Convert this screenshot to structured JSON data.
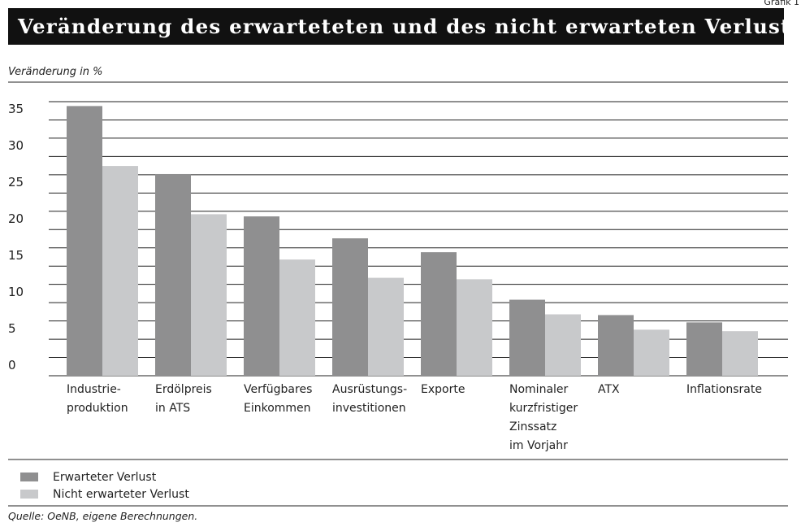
{
  "chart_data": {
    "type": "bar",
    "corner_label": "Grafik 1",
    "title": "Veränderung des erwarteteten und des nicht erwarteten Verlusts",
    "y_label": "Veränderung in %",
    "categories": [
      "Industrie-\nproduktion",
      "Erdölpreis\nin ATS",
      "Verfügbares\nEinkommen",
      "Ausrüstungs-\ninvestitionen",
      "Exporte",
      "Nominaler\nkurzfristiger\nZinssatz\nim Vorjahr",
      "ATX",
      "Inflationsrate"
    ],
    "series": [
      {
        "name": "Erwarteter Verlust",
        "color": "#8f8f90",
        "values": [
          36.9,
          27.6,
          21.8,
          18.8,
          16.9,
          10.4,
          8.3,
          7.3
        ]
      },
      {
        "name": "Nicht erwarteter Verlust",
        "color": "#c8c9cb",
        "values": [
          28.7,
          22.1,
          15.9,
          13.4,
          13.2,
          8.4,
          6.3,
          6.1
        ]
      }
    ],
    "ylim": [
      0,
      37.5
    ],
    "yticks": [
      0,
      5,
      10,
      15,
      20,
      25,
      30,
      35
    ],
    "minor_yticks": [
      2.5,
      7.5,
      12.5,
      17.5,
      22.5,
      27.5,
      32.5,
      37.5
    ],
    "grid": true,
    "legend": "bottom-left",
    "source": "Quelle: OeNB, eigene Berechnungen."
  }
}
